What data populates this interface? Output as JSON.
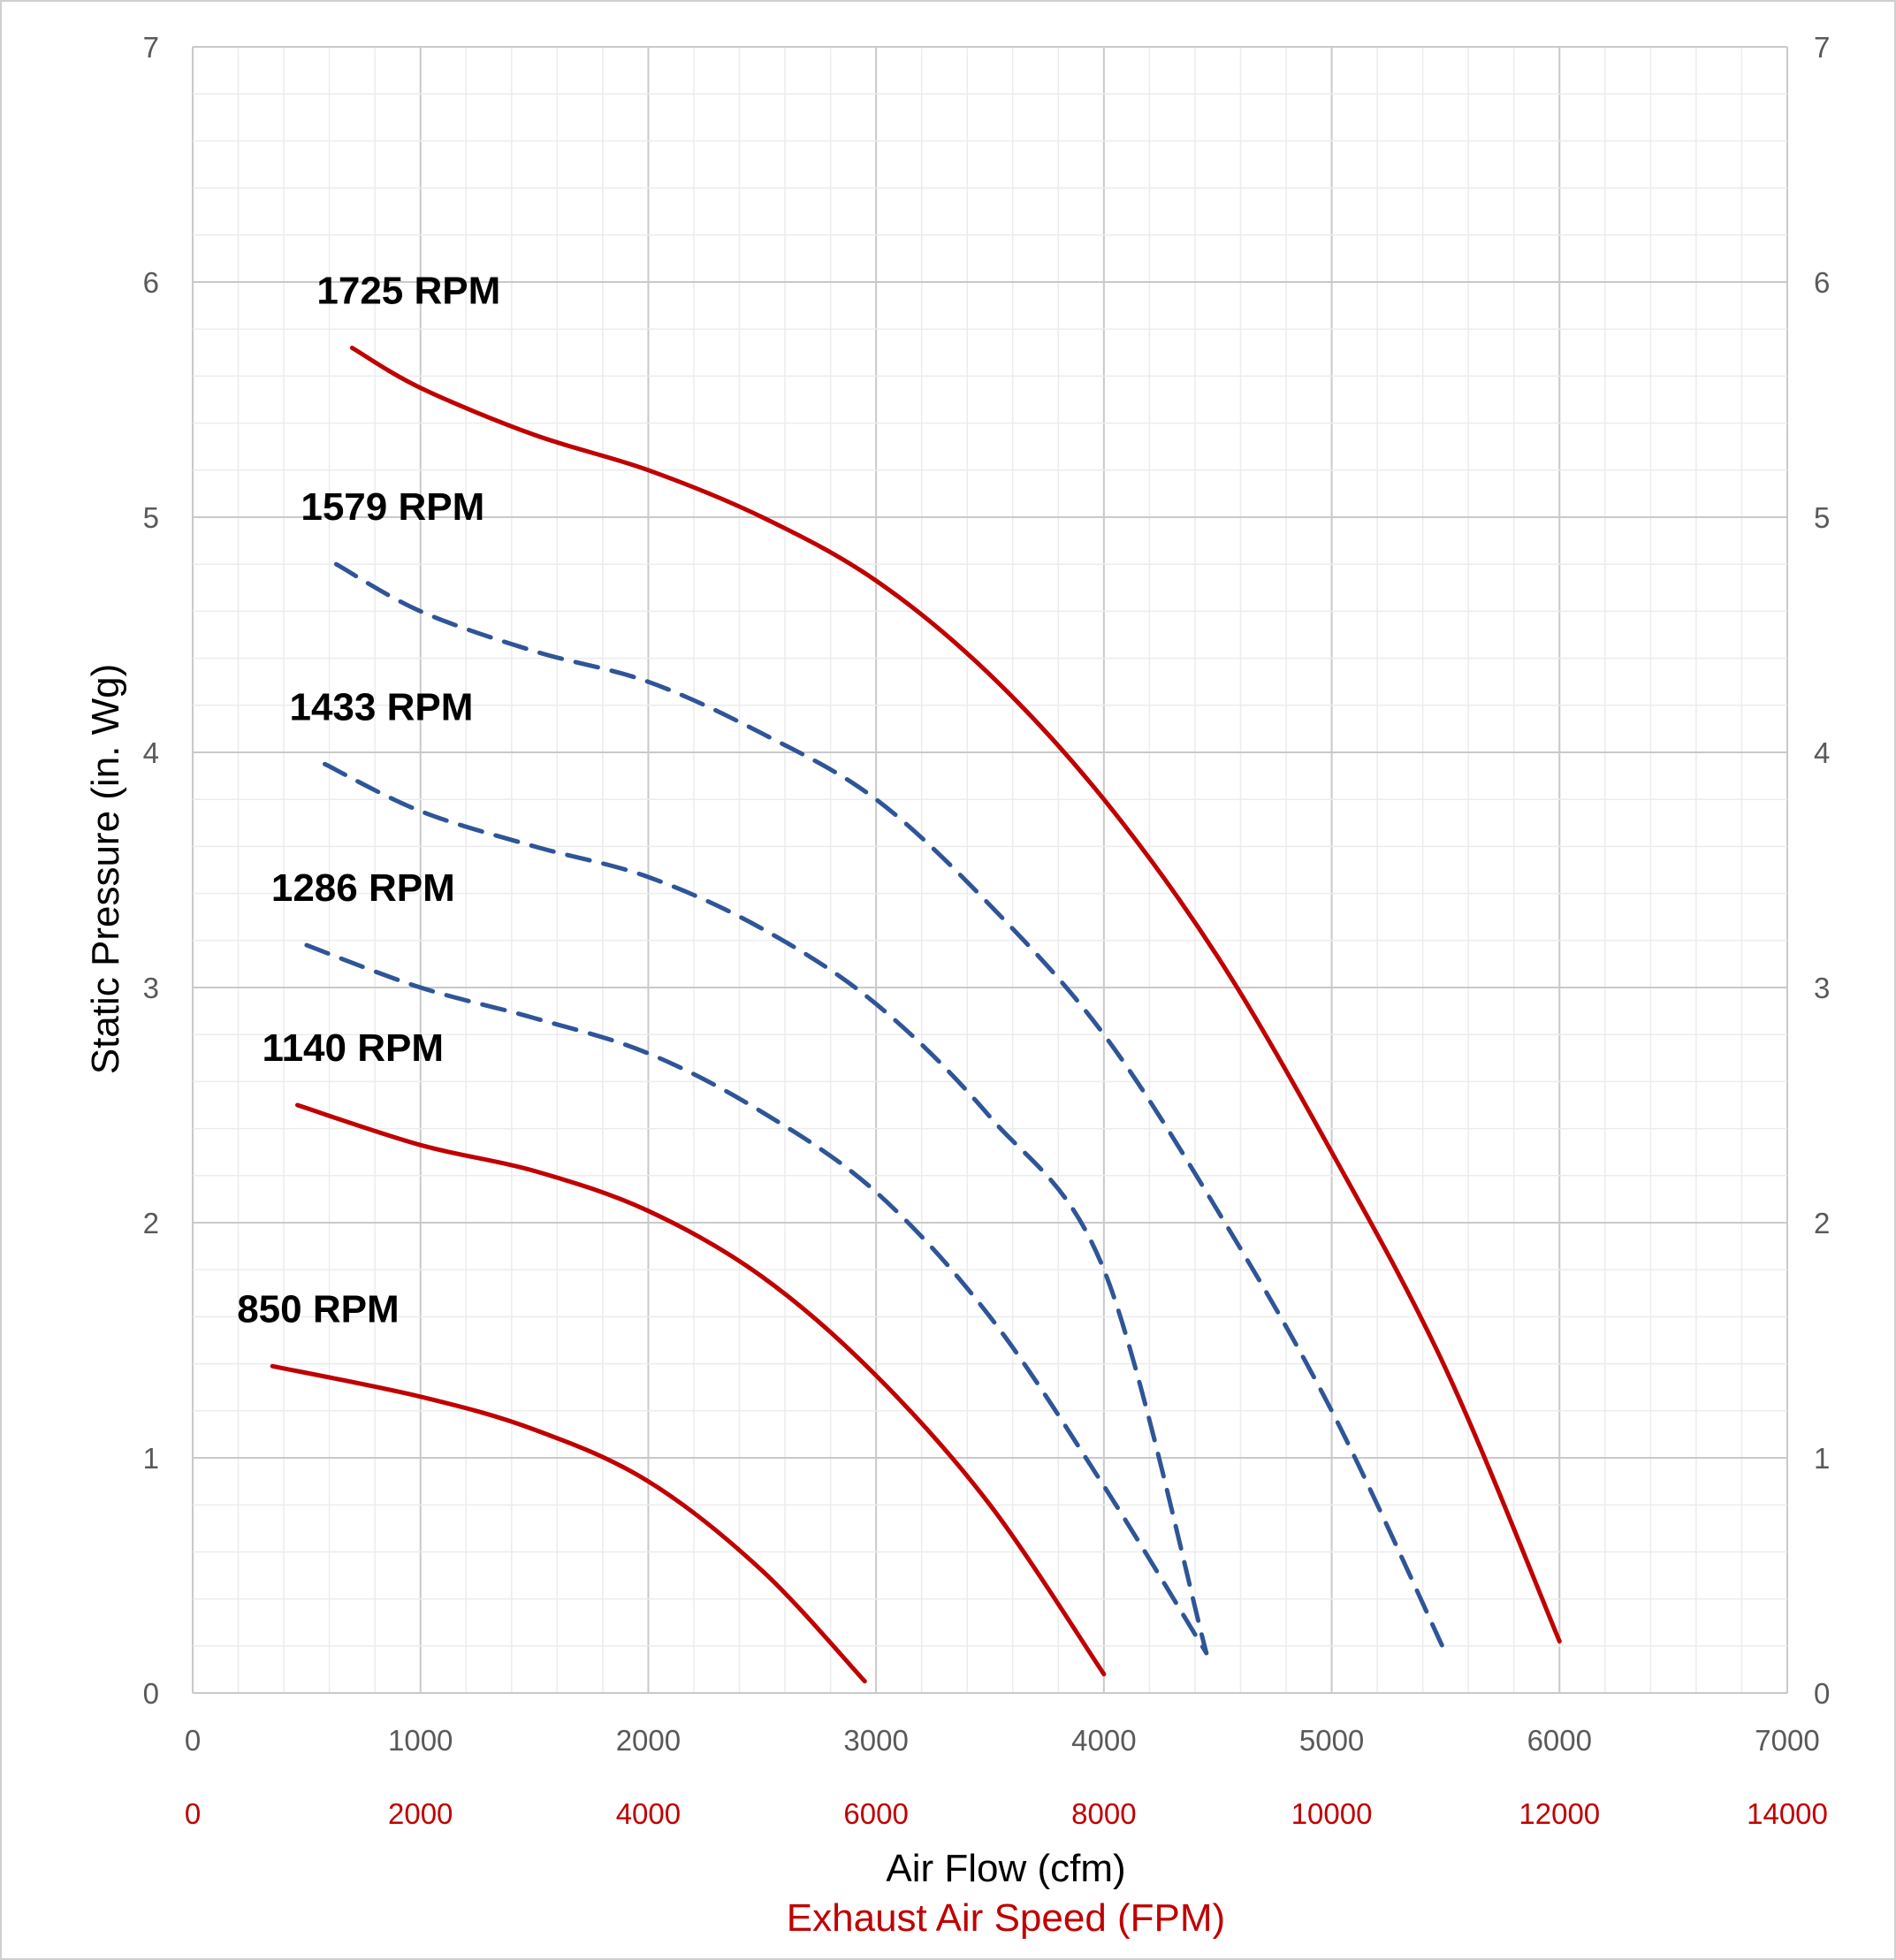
{
  "chart_data": {
    "type": "line",
    "xlabel": "Air Flow (cfm)",
    "xlabel2": "Exhaust Air Speed (FPM)",
    "ylabel": "Static Pressure (in. Wg)",
    "xlim": [
      0,
      7000
    ],
    "ylim": [
      0,
      7
    ],
    "x_ticks": [
      "0",
      "1000",
      "2000",
      "3000",
      "4000",
      "5000",
      "6000",
      "7000"
    ],
    "x2_ticks": [
      "0",
      "2000",
      "4000",
      "6000",
      "8000",
      "10000",
      "12000",
      "14000"
    ],
    "y_ticks": [
      "0",
      "1",
      "2",
      "3",
      "4",
      "5",
      "6",
      "7"
    ],
    "y2_ticks": [
      "0",
      "1",
      "2",
      "3",
      "4",
      "5",
      "6",
      "7"
    ],
    "grid": true,
    "colors": {
      "solid": "#c00000",
      "dashed": "#2f5597",
      "x2": "#c00000"
    },
    "series": [
      {
        "name": "1725 RPM",
        "style": "solid",
        "points": [
          [
            700,
            5.72
          ],
          [
            1000,
            5.55
          ],
          [
            1500,
            5.35
          ],
          [
            2000,
            5.2
          ],
          [
            2500,
            5.0
          ],
          [
            3000,
            4.73
          ],
          [
            3500,
            4.33
          ],
          [
            4000,
            3.8
          ],
          [
            4500,
            3.13
          ],
          [
            5000,
            2.3
          ],
          [
            5500,
            1.38
          ],
          [
            6000,
            0.22
          ]
        ]
      },
      {
        "name": "1579 RPM",
        "style": "dashed",
        "points": [
          [
            630,
            4.8
          ],
          [
            1000,
            4.6
          ],
          [
            1500,
            4.43
          ],
          [
            2000,
            4.3
          ],
          [
            2500,
            4.08
          ],
          [
            3000,
            3.8
          ],
          [
            3500,
            3.35
          ],
          [
            4000,
            2.8
          ],
          [
            4500,
            2.05
          ],
          [
            5000,
            1.2
          ],
          [
            5500,
            0.17
          ]
        ]
      },
      {
        "name": "1433 RPM",
        "style": "dashed",
        "points": [
          [
            580,
            3.95
          ],
          [
            1000,
            3.75
          ],
          [
            1500,
            3.6
          ],
          [
            2000,
            3.47
          ],
          [
            2500,
            3.25
          ],
          [
            3000,
            2.93
          ],
          [
            3500,
            2.45
          ],
          [
            4000,
            1.8
          ],
          [
            4450,
            0.17
          ]
        ]
      },
      {
        "name": "1286 RPM",
        "style": "dashed",
        "points": [
          [
            500,
            3.18
          ],
          [
            1000,
            3.0
          ],
          [
            1500,
            2.87
          ],
          [
            2000,
            2.72
          ],
          [
            2500,
            2.47
          ],
          [
            3000,
            2.13
          ],
          [
            3500,
            1.6
          ],
          [
            4000,
            0.88
          ],
          [
            4450,
            0.17
          ]
        ]
      },
      {
        "name": "1140 RPM",
        "style": "solid",
        "points": [
          [
            460,
            2.5
          ],
          [
            1000,
            2.33
          ],
          [
            1500,
            2.22
          ],
          [
            2000,
            2.05
          ],
          [
            2500,
            1.77
          ],
          [
            3000,
            1.35
          ],
          [
            3500,
            0.8
          ],
          [
            4000,
            0.08
          ]
        ]
      },
      {
        "name": "850 RPM",
        "style": "solid",
        "points": [
          [
            350,
            1.39
          ],
          [
            1000,
            1.26
          ],
          [
            1500,
            1.12
          ],
          [
            2000,
            0.9
          ],
          [
            2500,
            0.52
          ],
          [
            2950,
            0.05
          ]
        ]
      }
    ]
  }
}
